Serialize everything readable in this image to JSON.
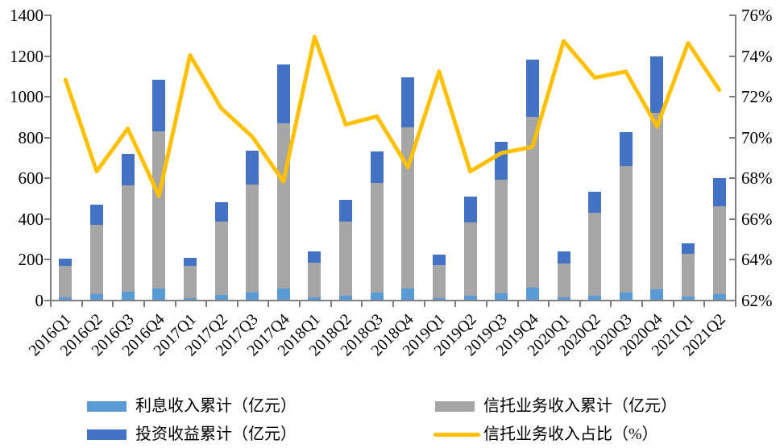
{
  "chart_data": {
    "type": "bar",
    "subtype": "stacked-bar-with-line",
    "title": "",
    "grid": false,
    "legend_position": "bottom",
    "categories": [
      "2016Q1",
      "2016Q2",
      "2016Q3",
      "2016Q4",
      "2017Q1",
      "2017Q2",
      "2017Q3",
      "2017Q4",
      "2018Q1",
      "2018Q2",
      "2018Q3",
      "2018Q4",
      "2019Q1",
      "2019Q2",
      "2019Q3",
      "2019Q4",
      "2020Q1",
      "2020Q2",
      "2020Q3",
      "2020Q4",
      "2021Q1",
      "2021Q2"
    ],
    "series": [
      {
        "name": "利息收入累计（亿元）",
        "type": "bar",
        "stack_order": 1,
        "color": "#5B9BD5",
        "values": [
          10,
          28,
          40,
          57,
          9,
          24,
          37,
          54,
          11,
          21,
          37,
          55,
          8,
          20,
          33,
          58,
          10,
          21,
          37,
          50,
          15,
          28
        ]
      },
      {
        "name": "信托业务收入累计（亿元）",
        "type": "bar",
        "stack_order": 2,
        "color": "#A6A6A6",
        "values": [
          155,
          339,
          520,
          768,
          157,
          360,
          527,
          813,
          172,
          361,
          536,
          790,
          163,
          358,
          558,
          838,
          168,
          405,
          619,
          869,
          209,
          430
        ]
      },
      {
        "name": "投资收益累计（亿元）",
        "type": "bar",
        "stack_order": 3,
        "color": "#4472C4",
        "values": [
          35,
          98,
          155,
          256,
          40,
          96,
          166,
          287,
          53,
          110,
          156,
          245,
          49,
          127,
          183,
          281,
          59,
          104,
          168,
          277,
          53,
          138
        ]
      },
      {
        "name": "信托业务收入占比（%）",
        "type": "line",
        "axis": "right",
        "color": "#FFC000",
        "values": [
          72.8,
          68.3,
          70.4,
          67.1,
          74.0,
          71.4,
          70.0,
          67.8,
          74.9,
          70.6,
          71.0,
          68.5,
          73.2,
          68.3,
          69.2,
          69.5,
          74.7,
          72.9,
          73.2,
          70.5,
          74.6,
          72.3
        ]
      }
    ],
    "left_axis": {
      "min": 0,
      "max": 1400,
      "step": 200,
      "ticks": [
        "0",
        "200",
        "400",
        "600",
        "800",
        "1000",
        "1200",
        "1400"
      ]
    },
    "right_axis": {
      "min": 62,
      "max": 76,
      "step": 2,
      "ticks": [
        "62%",
        "64%",
        "66%",
        "68%",
        "70%",
        "72%",
        "74%",
        "76%"
      ]
    },
    "legend": [
      {
        "label": "利息收入累计（亿元）",
        "marker": "box",
        "color": "#5B9BD5"
      },
      {
        "label": "投资收益累计（亿元）",
        "marker": "box",
        "color": "#4472C4"
      },
      {
        "label": "信托业务收入累计（亿元）",
        "marker": "box",
        "color": "#A6A6A6"
      },
      {
        "label": "信托业务收入占比（%）",
        "marker": "line",
        "color": "#FFC000"
      }
    ],
    "axis_color": "#808080"
  }
}
